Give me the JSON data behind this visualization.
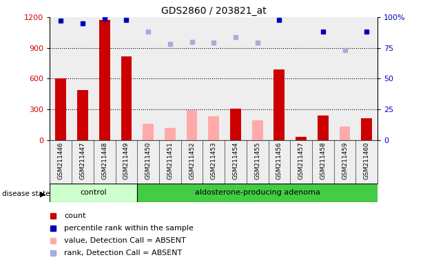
{
  "title": "GDS2860 / 203821_at",
  "samples": [
    "GSM211446",
    "GSM211447",
    "GSM211448",
    "GSM211449",
    "GSM211450",
    "GSM211451",
    "GSM211452",
    "GSM211453",
    "GSM211454",
    "GSM211455",
    "GSM211456",
    "GSM211457",
    "GSM211458",
    "GSM211459",
    "GSM211460"
  ],
  "groups": {
    "control": [
      0,
      1,
      2,
      3
    ],
    "adenoma": [
      4,
      5,
      6,
      7,
      8,
      9,
      10,
      11,
      12,
      13,
      14
    ]
  },
  "group_labels": [
    "control",
    "aldosterone-producing adenoma"
  ],
  "ctrl_color": "#ccffcc",
  "aden_color": "#44cc44",
  "count_values": [
    600,
    490,
    1175,
    820,
    null,
    null,
    null,
    null,
    305,
    null,
    690,
    30,
    240,
    null,
    210
  ],
  "count_absent": [
    null,
    null,
    null,
    null,
    155,
    120,
    290,
    235,
    null,
    195,
    null,
    null,
    null,
    130,
    null
  ],
  "percentile_present": [
    97,
    95,
    99,
    98,
    null,
    null,
    null,
    null,
    null,
    null,
    98,
    null,
    88,
    null,
    88
  ],
  "percentile_absent": [
    null,
    null,
    null,
    null,
    88,
    78,
    80,
    79,
    84,
    79,
    null,
    null,
    null,
    73,
    null
  ],
  "ylim_left": [
    0,
    1200
  ],
  "ylim_right": [
    0,
    100
  ],
  "yticks_left": [
    0,
    300,
    600,
    900,
    1200
  ],
  "ytick_labels_left": [
    "0",
    "300",
    "600",
    "900",
    "1200"
  ],
  "yticks_right": [
    0,
    25,
    50,
    75,
    100
  ],
  "ytick_labels_right": [
    "0",
    "25",
    "50",
    "75",
    "100%"
  ],
  "count_color": "#cc0000",
  "count_absent_color": "#ffaaaa",
  "percentile_color": "#0000bb",
  "percentile_absent_color": "#aaaadd",
  "bg_color": "#eeeeee",
  "disease_state_label": "disease state"
}
